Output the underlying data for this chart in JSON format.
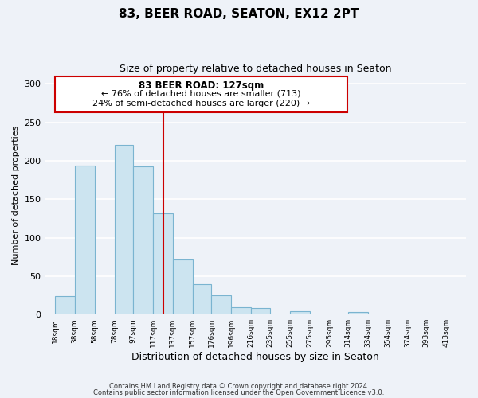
{
  "title": "83, BEER ROAD, SEATON, EX12 2PT",
  "subtitle": "Size of property relative to detached houses in Seaton",
  "xlabel": "Distribution of detached houses by size in Seaton",
  "ylabel": "Number of detached properties",
  "bar_left_edges": [
    18,
    38,
    58,
    78,
    97,
    117,
    137,
    157,
    176,
    196,
    216,
    235,
    255,
    275,
    295,
    314,
    334,
    354,
    374,
    393
  ],
  "bar_heights": [
    24,
    194,
    0,
    221,
    193,
    132,
    72,
    40,
    25,
    10,
    8,
    0,
    4,
    0,
    0,
    3,
    0,
    0,
    0,
    0
  ],
  "bar_widths": [
    20,
    20,
    20,
    19,
    20,
    20,
    20,
    19,
    20,
    20,
    19,
    20,
    20,
    20,
    19,
    20,
    20,
    20,
    19,
    20
  ],
  "bar_color": "#cce4f0",
  "bar_edgecolor": "#7ab4d0",
  "tick_labels": [
    "18sqm",
    "38sqm",
    "58sqm",
    "78sqm",
    "97sqm",
    "117sqm",
    "137sqm",
    "157sqm",
    "176sqm",
    "196sqm",
    "216sqm",
    "235sqm",
    "255sqm",
    "275sqm",
    "295sqm",
    "314sqm",
    "334sqm",
    "354sqm",
    "374sqm",
    "393sqm",
    "413sqm"
  ],
  "tick_positions": [
    18,
    38,
    58,
    78,
    97,
    117,
    137,
    157,
    176,
    196,
    216,
    235,
    255,
    275,
    295,
    314,
    334,
    354,
    374,
    393,
    413
  ],
  "vline_x": 127,
  "vline_color": "#cc0000",
  "annotation_line1": "83 BEER ROAD: 127sqm",
  "annotation_line2": "← 76% of detached houses are smaller (713)",
  "annotation_line3": "24% of semi-detached houses are larger (220) →",
  "ylim": [
    0,
    310
  ],
  "xlim": [
    8,
    433
  ],
  "yticks": [
    0,
    50,
    100,
    150,
    200,
    250,
    300
  ],
  "footnote1": "Contains HM Land Registry data © Crown copyright and database right 2024.",
  "footnote2": "Contains public sector information licensed under the Open Government Licence v3.0.",
  "background_color": "#eef2f8",
  "plot_bg_color": "#eef2f8",
  "grid_color": "#ffffff",
  "annotation_box_color": "#ffffff",
  "annotation_box_edge": "#cc0000"
}
